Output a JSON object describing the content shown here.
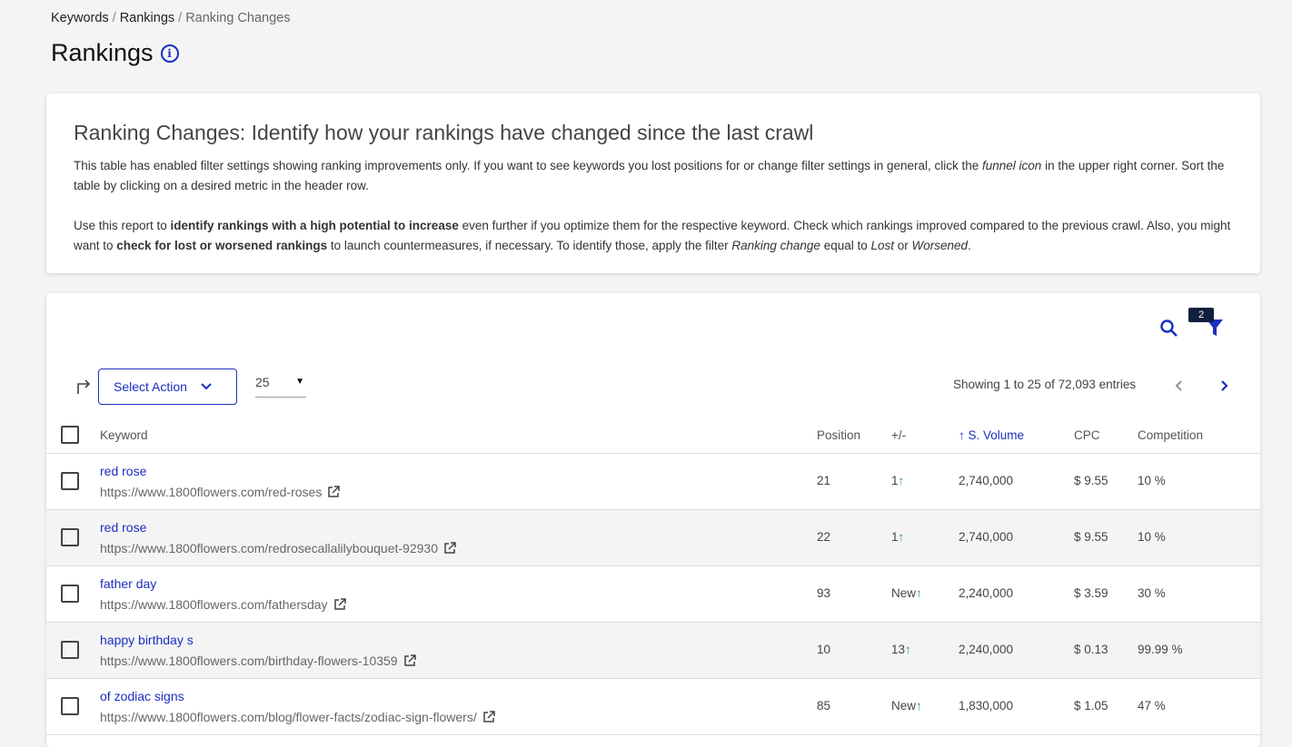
{
  "breadcrumb": [
    "Keywords",
    "Rankings",
    "Ranking Changes"
  ],
  "page_title": "Rankings",
  "intro": {
    "heading": "Ranking Changes: Identify how your rankings have changed since the last crawl",
    "p1_a": "This table has enabled filter settings showing ranking improvements only. If you want to see keywords you lost positions for or change filter settings in general, click the ",
    "p1_em": "funnel icon",
    "p1_b": " in the upper right corner. Sort the table by clicking on a desired metric in the header row.",
    "p2_a": "Use this report to ",
    "p2_b1": "identify rankings with a high potential to increase",
    "p2_c": " even further if you optimize them for the respective keyword. Check which rankings improved compared to the previous crawl. Also, you might want to ",
    "p2_b2": "check for lost or worsened rankings",
    "p2_d": " to launch countermeasures, if necessary. To identify those, apply the filter ",
    "p2_e1": "Ranking change",
    "p2_f": " equal to ",
    "p2_e2": "Lost",
    "p2_g": " or ",
    "p2_e3": "Worsened",
    "p2_h": "."
  },
  "toolbar": {
    "filter_count": "2",
    "select_action": "Select Action",
    "per_page": "25",
    "showing": "Showing 1 to 25 of 72,093 entries"
  },
  "columns": [
    "Keyword",
    "Position",
    "+/-",
    "S. Volume",
    "CPC",
    "Competition"
  ],
  "sorted_column": "S. Volume",
  "rows": [
    {
      "keyword": "red rose",
      "url": "https://www.1800flowers.com/red-roses",
      "position": "21",
      "change": "1",
      "volume": "2,740,000",
      "cpc": "$ 9.55",
      "competition": "10 %"
    },
    {
      "keyword": "red rose",
      "url": "https://www.1800flowers.com/redrosecallalilybouquet-92930",
      "position": "22",
      "change": "1",
      "volume": "2,740,000",
      "cpc": "$ 9.55",
      "competition": "10 %"
    },
    {
      "keyword": "father day",
      "url": "https://www.1800flowers.com/fathersday",
      "position": "93",
      "change": "New",
      "volume": "2,240,000",
      "cpc": "$ 3.59",
      "competition": "30 %"
    },
    {
      "keyword": "happy birthday s",
      "url": "https://www.1800flowers.com/birthday-flowers-10359",
      "position": "10",
      "change": "13",
      "volume": "2,240,000",
      "cpc": "$ 0.13",
      "competition": "99.99 %"
    },
    {
      "keyword": "of zodiac signs",
      "url": "https://www.1800flowers.com/blog/flower-facts/zodiac-sign-flowers/",
      "position": "85",
      "change": "New",
      "volume": "1,830,000",
      "cpc": "$ 1.05",
      "competition": "47 %"
    }
  ],
  "colors": {
    "accent": "#1a2fbf",
    "up": "#2a9d5a"
  }
}
